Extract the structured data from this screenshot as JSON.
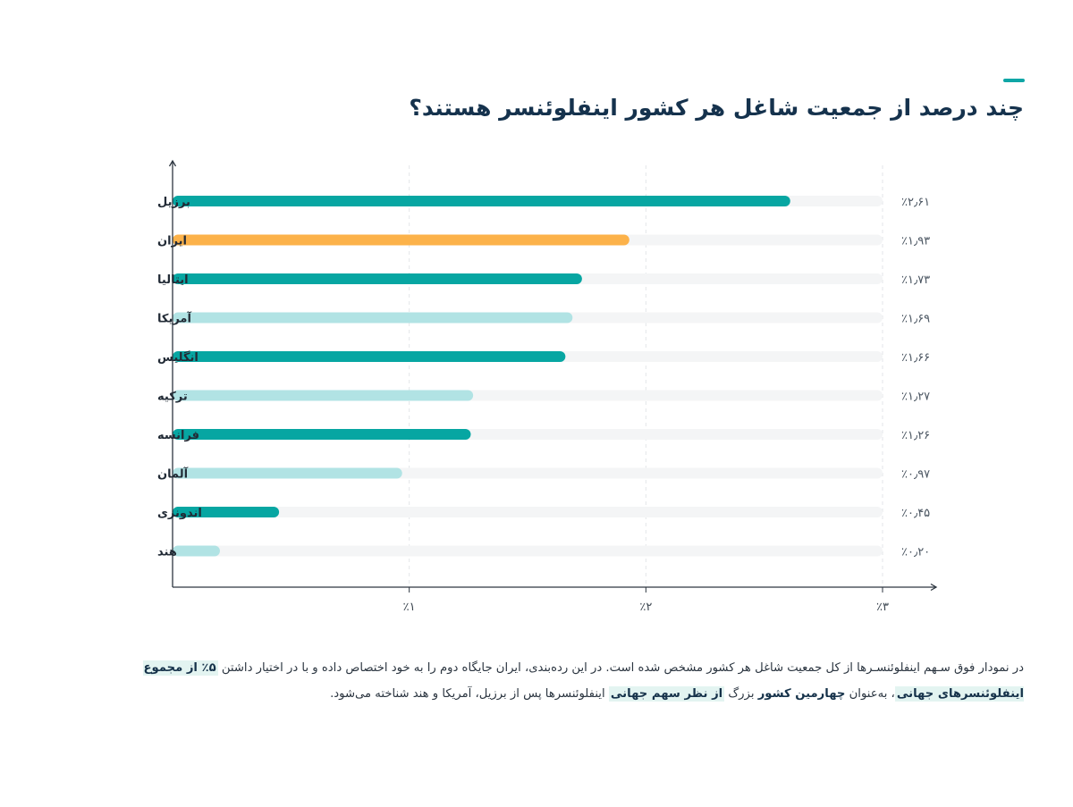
{
  "title": "چند درصد از جمعیت شاغل هر کشور اینفلوئنسر هستند؟",
  "colors": {
    "accent": "#0fa6a6",
    "bar_dark": "#07a6a2",
    "bar_light": "#b1e3e4",
    "bar_highlight": "#fcb24a",
    "track": "#f4f5f6",
    "axis": "#2d3640"
  },
  "chart_data": {
    "type": "bar",
    "orientation": "horizontal",
    "title": "",
    "xlabel": "",
    "ylabel": "",
    "xlim": [
      0,
      3
    ],
    "grid": true,
    "categories": [
      "برزیل",
      "ایران",
      "ایتالیا",
      "آمریکا",
      "انگلیس",
      "ترکیه",
      "فرانسه",
      "آلمان",
      "اندونزی",
      "هند"
    ],
    "values": [
      2.61,
      1.93,
      1.73,
      1.69,
      1.66,
      1.27,
      1.26,
      0.97,
      0.45,
      0.2
    ],
    "value_labels": [
      "٪۲٫۶۱",
      "٪۱٫۹۳",
      "٪۱٫۷۳",
      "٪۱٫۶۹",
      "٪۱٫۶۶",
      "٪۱٫۲۷",
      "٪۱٫۲۶",
      "٪۰٫۹۷",
      "٪۰٫۴۵",
      "٪۰٫۲۰"
    ],
    "bar_colors": [
      "dark",
      "highlight",
      "dark",
      "light",
      "dark",
      "light",
      "dark",
      "light",
      "dark",
      "light"
    ],
    "ticks": [
      1,
      2,
      3
    ],
    "tick_labels": [
      "٪۱",
      "٪۲",
      "٪۳"
    ]
  },
  "footnote": {
    "text_1": "در نمودار فوق سـهم اینفلوئنسـرها از کل جمعیت شاغل هر کشور مشخص شده است. در این رده‌بندی، ایران جایگاه دوم را به خود اختصاص داده و با در اختیار داشتن ",
    "highlight_1": "۵٪ از مجموع اینفلوئنسرهای جهانی",
    "text_2": "، به‌عنوان ",
    "strong_1": "چهارمین کشور",
    "text_3": " بزرگ ",
    "highlight_2": "از نظر سهم جهانی",
    "text_4": " اینفلوئنسرها پس از برزیل، آمریکا و هند شناخته می‌شود."
  }
}
